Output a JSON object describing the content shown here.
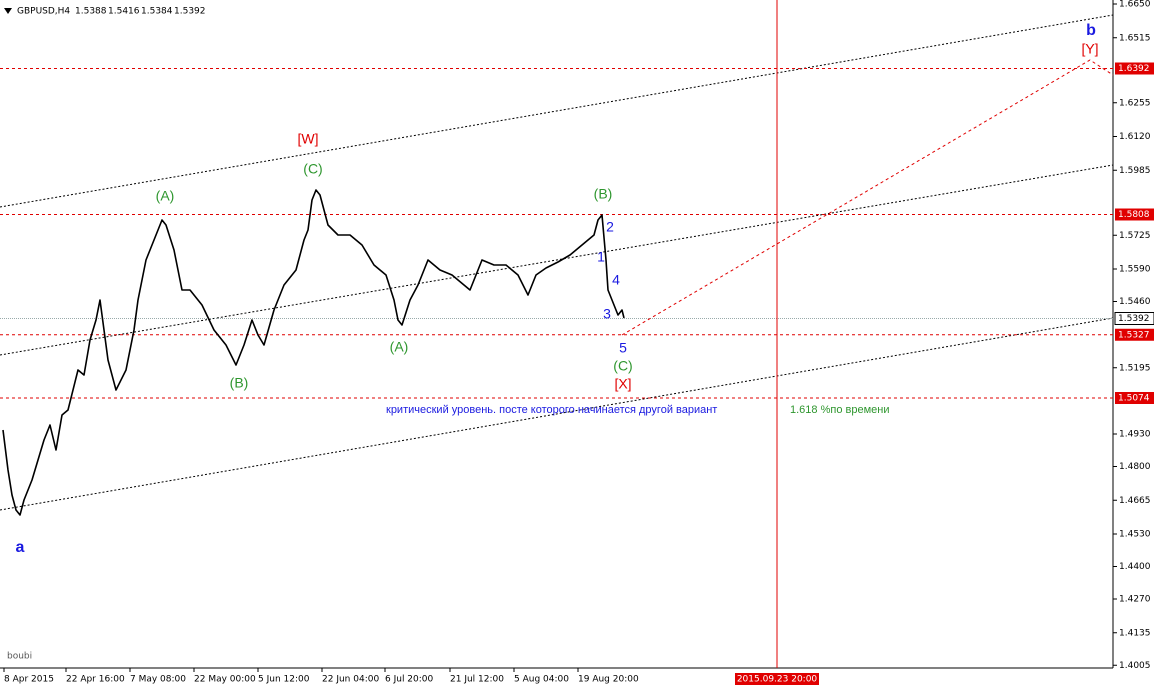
{
  "chart_data": {
    "type": "line",
    "symbol": "GBPUSD,H4",
    "ohlc": [
      1.5388,
      1.5416,
      1.5384,
      1.5392
    ],
    "x": [
      3,
      8,
      12,
      16,
      20,
      24,
      32,
      38,
      44,
      50,
      56,
      62,
      68,
      78,
      84,
      90,
      96,
      100,
      104,
      108,
      116,
      126,
      134,
      138,
      142,
      146,
      150,
      158,
      162,
      166,
      174,
      182,
      190,
      202,
      214,
      226,
      236,
      244,
      252,
      258,
      264,
      274,
      284,
      296,
      304,
      308,
      312,
      316,
      320,
      328,
      338,
      350,
      362,
      374,
      386,
      394,
      398,
      402,
      410,
      418,
      428,
      440,
      452,
      464,
      470,
      482,
      494,
      506,
      518,
      528,
      536,
      546,
      558,
      570,
      582,
      594,
      598,
      602,
      606,
      608,
      612,
      618,
      622,
      624
    ],
    "values": [
      1.4946,
      1.4786,
      1.4686,
      1.4626,
      1.4606,
      1.4666,
      1.4746,
      1.4826,
      1.4906,
      1.4966,
      1.4866,
      1.5006,
      1.5026,
      1.5186,
      1.5166,
      1.5306,
      1.5386,
      1.5466,
      1.5346,
      1.5226,
      1.5106,
      1.5186,
      1.5346,
      1.5466,
      1.5546,
      1.5626,
      1.5666,
      1.5746,
      1.5786,
      1.5766,
      1.5666,
      1.5506,
      1.5506,
      1.5446,
      1.5346,
      1.5286,
      1.5206,
      1.5286,
      1.5386,
      1.5326,
      1.5286,
      1.5426,
      1.5526,
      1.5586,
      1.5706,
      1.5746,
      1.5866,
      1.5906,
      1.5886,
      1.5766,
      1.5726,
      1.5726,
      1.5686,
      1.5606,
      1.5566,
      1.5466,
      1.5386,
      1.5366,
      1.5466,
      1.5526,
      1.5626,
      1.5586,
      1.5566,
      1.5526,
      1.5506,
      1.5626,
      1.5606,
      1.5606,
      1.5566,
      1.5486,
      1.5566,
      1.5594,
      1.5618,
      1.5646,
      1.5686,
      1.5726,
      1.5786,
      1.5806,
      1.5626,
      1.5506,
      1.5466,
      1.5406,
      1.5426,
      1.5394
    ],
    "color": "#000000",
    "xlim": [
      0,
      1113
    ],
    "ylim": [
      1.3994,
      1.6666
    ],
    "yticks": [
      {
        "value": 1.665,
        "label": "1.6650"
      },
      1.6515,
      1.6255,
      {
        "value": 1.612,
        "label": "1.6120"
      },
      1.5985,
      1.5725,
      {
        "value": 1.559,
        "label": "1.5590"
      },
      {
        "value": 1.546,
        "label": "1.5460"
      },
      1.5195,
      {
        "value": 1.493,
        "label": "1.4930"
      },
      {
        "value": 1.48,
        "label": "1.4800"
      },
      1.4665,
      {
        "value": 1.453,
        "label": "1.4530"
      },
      {
        "value": 1.44,
        "label": "1.4400"
      },
      {
        "value": 1.427,
        "label": "1.4270"
      },
      1.4135,
      1.4005
    ],
    "xticks": [
      {
        "value": 4,
        "label": "8 Apr 2015"
      },
      {
        "value": 66,
        "label": "22 Apr 16:00"
      },
      {
        "value": 130,
        "label": "7 May 08:00"
      },
      {
        "value": 194,
        "label": "22 May 00:00"
      },
      {
        "value": 258,
        "label": "5 Jun 12:00"
      },
      {
        "value": 322,
        "label": "22 Jun 04:00"
      },
      {
        "value": 385,
        "label": "6 Jul 20:00"
      },
      {
        "value": 450,
        "label": "21 Jul 12:00"
      },
      {
        "value": 514,
        "label": "5 Aug 04:00"
      },
      {
        "value": 578,
        "label": "19 Aug 20:00"
      }
    ],
    "vline": {
      "value": 777,
      "label": "2015.09.23 20:00",
      "color": "#e00000"
    },
    "levels": [
      1.6392,
      1.5808,
      1.5327,
      1.5074
    ],
    "level_color": "#e00000",
    "current_price": 1.5392,
    "trendlines": [
      {
        "x": [
          0,
          1113
        ],
        "values": [
          1.5838,
          1.6606
        ]
      },
      {
        "x": [
          0,
          1113
        ],
        "values": [
          1.5246,
          1.6006
        ]
      },
      {
        "x": [
          0,
          1113
        ],
        "values": [
          1.4626,
          1.5394
        ]
      }
    ],
    "projection": {
      "x": [
        622,
        1090,
        1113
      ],
      "values": [
        1.5326,
        1.6426,
        1.6366
      ],
      "color": "#e00000"
    },
    "annotations": [
      {
        "text": "[W]",
        "color": "#e00000"
      },
      {
        "text": "(C)",
        "color": "#2e962e"
      },
      {
        "text": "(A)",
        "color": "#2e962e"
      },
      {
        "text": "(B)",
        "color": "#2e962e"
      },
      {
        "text": "(A)",
        "color": "#2e962e"
      },
      {
        "text": "(B)",
        "color": "#2e962e"
      },
      {
        "text": "2",
        "color": "#1a1ae0"
      },
      {
        "text": "1",
        "color": "#1a1ae0"
      },
      {
        "text": "4",
        "color": "#1a1ae0"
      },
      {
        "text": "3",
        "color": "#1a1ae0"
      },
      {
        "text": "5",
        "color": "#1a1ae0"
      },
      {
        "text": "(C)",
        "color": "#2e962e"
      },
      {
        "text": "[X]",
        "color": "#e00000"
      },
      {
        "text": "a",
        "color": "#1a1ae0"
      },
      {
        "text": "b",
        "color": "#1a1ae0"
      },
      {
        "text": "[Y]",
        "color": "#e00000"
      },
      {
        "text": "критический уровень. посте которого начинается другой вариант",
        "color": "#1a1ae0"
      },
      {
        "text": "1.618 %по времени",
        "color": "#2e962e"
      }
    ],
    "footer": "boubi"
  }
}
